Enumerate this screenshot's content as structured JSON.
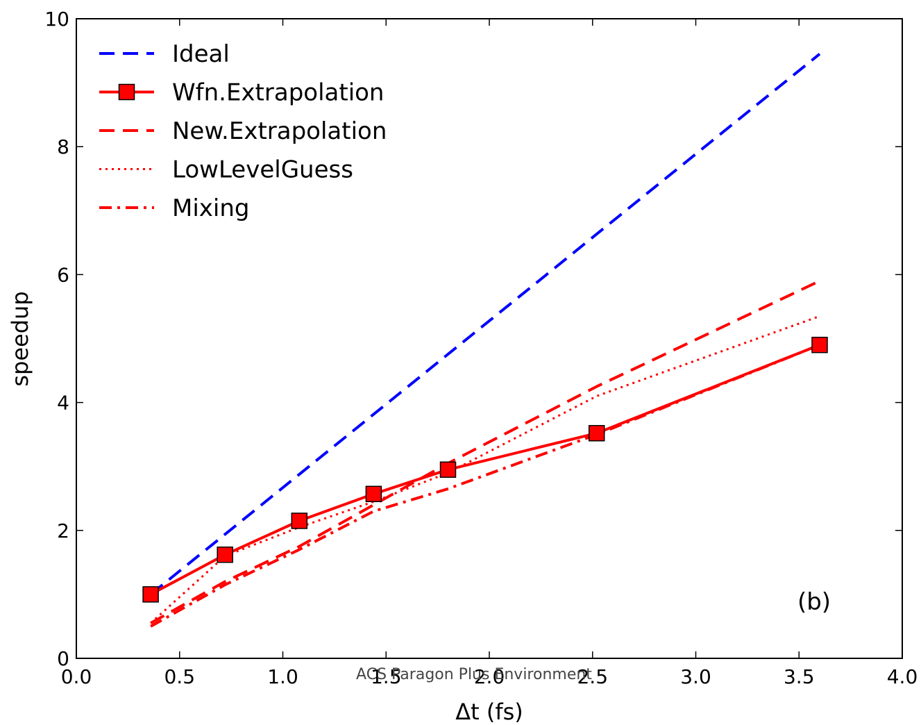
{
  "chart_data": {
    "type": "line",
    "xlabel": "Δt (fs)",
    "ylabel": "speedup",
    "xlim": [
      0.0,
      4.0
    ],
    "ylim": [
      0,
      10
    ],
    "x_ticks": [
      "0.0",
      "0.5",
      "1.0",
      "1.5",
      "2.0",
      "2.5",
      "3.0",
      "3.5",
      "4.0"
    ],
    "y_ticks": [
      "0",
      "2",
      "4",
      "6",
      "8",
      "10"
    ],
    "annotation": "(b)",
    "watermark": "ACS Paragon Plus Environment",
    "grid": false,
    "legend_position": "top-left",
    "series": [
      {
        "name": "Ideal",
        "color": "#0000ff",
        "style": "dashed",
        "marker": "none",
        "x": [
          0.36,
          3.6
        ],
        "y": [
          1.0,
          9.45
        ]
      },
      {
        "name": "Wfn.Extrapolation",
        "color": "#ff0000",
        "style": "solid",
        "marker": "square",
        "x": [
          0.36,
          0.72,
          1.08,
          1.44,
          1.8,
          2.52,
          3.6
        ],
        "y": [
          1.0,
          1.62,
          2.15,
          2.57,
          2.95,
          3.52,
          4.9
        ]
      },
      {
        "name": "New.Extrapolation",
        "color": "#ff0000",
        "style": "dashed",
        "marker": "none",
        "x": [
          0.36,
          0.72,
          1.08,
          1.44,
          1.8,
          2.52,
          3.6
        ],
        "y": [
          0.55,
          1.2,
          1.75,
          2.4,
          3.05,
          4.25,
          5.9
        ]
      },
      {
        "name": "LowLevelGuess",
        "color": "#ff0000",
        "style": "dotted",
        "marker": "none",
        "x": [
          0.36,
          0.72,
          1.08,
          1.44,
          1.8,
          2.52,
          3.6
        ],
        "y": [
          0.55,
          1.6,
          2.05,
          2.45,
          2.9,
          4.1,
          5.35
        ]
      },
      {
        "name": "Mixing",
        "color": "#ff0000",
        "style": "dashdot",
        "marker": "none",
        "x": [
          0.36,
          0.72,
          1.08,
          1.44,
          1.8,
          2.52,
          3.6
        ],
        "y": [
          0.5,
          1.15,
          1.7,
          2.3,
          2.65,
          3.5,
          4.9
        ]
      }
    ]
  }
}
